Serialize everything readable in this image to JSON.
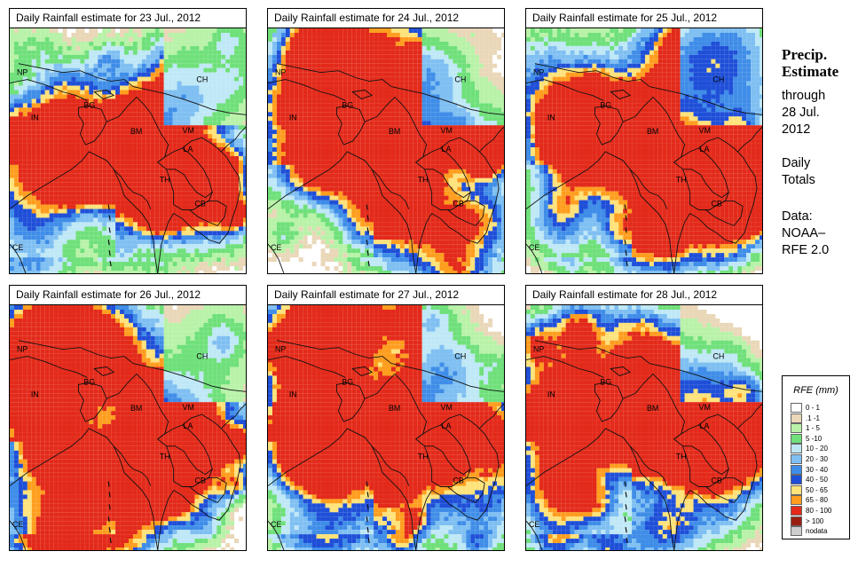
{
  "panels": [
    {
      "title": "Daily Rainfall estimate for  23 Jul., 2012",
      "seed": 11,
      "band": 0.55,
      "intensity": 0.95
    },
    {
      "title": "Daily Rainfall estimate for  24 Jul., 2012",
      "seed": 23,
      "band": 0.5,
      "intensity": 1.05
    },
    {
      "title": "Daily Rainfall estimate for  25 Jul., 2012",
      "seed": 37,
      "band": 0.45,
      "intensity": 1.15
    },
    {
      "title": "Daily Rainfall estimate for  26 Jul., 2012",
      "seed": 41,
      "band": 0.58,
      "intensity": 1.2
    },
    {
      "title": "Daily Rainfall estimate for  27 Jul., 2012",
      "seed": 59,
      "band": 0.52,
      "intensity": 1.1
    },
    {
      "title": "Daily Rainfall estimate for  28 Jul., 2012",
      "seed": 67,
      "band": 0.48,
      "intensity": 1.05
    }
  ],
  "map_labels": [
    "NP",
    "CH",
    "IN",
    "BG",
    "BM",
    "VM",
    "LA",
    "TH",
    "CB",
    "CE"
  ],
  "sidebar": {
    "heading_line1": "Precip.",
    "heading_line2": "Estimate",
    "through": "through",
    "date_line1": "28 Jul.",
    "date_line2": "2012",
    "totals_line1": "Daily",
    "totals_line2": "Totals",
    "data_line1": "Data:",
    "data_line2": "NOAA–",
    "data_line3": "RFE 2.0"
  },
  "legend": {
    "title": "RFE (mm)",
    "items": [
      {
        "label": "0 - 1",
        "color": "#ffffff"
      },
      {
        "label": ".1 -1",
        "color": "#e9d7b8"
      },
      {
        "label": "1 - 5",
        "color": "#b8f2a8"
      },
      {
        "label": "5 -10",
        "color": "#6fe07a"
      },
      {
        "label": "10 - 20",
        "color": "#bfe8f6"
      },
      {
        "label": "20 - 30",
        "color": "#7fbff2"
      },
      {
        "label": "30 - 40",
        "color": "#3f8de8"
      },
      {
        "label": "40 - 50",
        "color": "#1f4fd8"
      },
      {
        "label": "50 - 65",
        "color": "#ffe27a"
      },
      {
        "label": "65 - 80",
        "color": "#ff9d1e"
      },
      {
        "label": "80 - 100",
        "color": "#e32a1a"
      },
      {
        "label": "> 100",
        "color": "#9a1f12"
      },
      {
        "label": "nodata",
        "color": "#cfcfcf"
      }
    ]
  }
}
